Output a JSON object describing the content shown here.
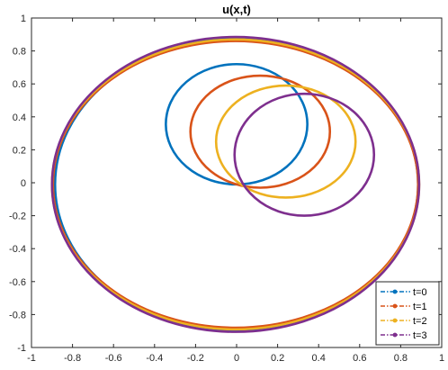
{
  "chart_data": {
    "type": "line",
    "title": "u(x,t)",
    "xlabel": "",
    "ylabel": "",
    "xlim": [
      -1,
      1
    ],
    "ylim": [
      -1,
      1
    ],
    "xticks": [
      "-1",
      "-0.8",
      "-0.6",
      "-0.4",
      "-0.2",
      "0",
      "0.2",
      "0.4",
      "0.6",
      "0.8",
      "1"
    ],
    "yticks": [
      "1",
      "0.8",
      "0.6",
      "0.4",
      "0.2",
      "0",
      "-0.2",
      "-0.4",
      "-0.6",
      "-0.8",
      "-1"
    ],
    "grid": false,
    "legend_position": "bottom-right",
    "series": [
      {
        "name": "t=0",
        "color": "#0072BD",
        "curves": [
          {
            "cx": 0.0,
            "cy": -0.01,
            "rx": 0.885,
            "ry": 0.885
          },
          {
            "cx": 0.0,
            "cy": 0.355,
            "rx": 0.345,
            "ry": 0.365
          }
        ]
      },
      {
        "name": "t=1",
        "color": "#D95319",
        "curves": [
          {
            "cx": -0.005,
            "cy": -0.01,
            "rx": 0.89,
            "ry": 0.87
          },
          {
            "cx": 0.115,
            "cy": 0.31,
            "rx": 0.34,
            "ry": 0.34
          }
        ]
      },
      {
        "name": "t=2",
        "color": "#EDB120",
        "curves": [
          {
            "cx": -0.005,
            "cy": -0.01,
            "rx": 0.895,
            "ry": 0.88
          },
          {
            "cx": 0.24,
            "cy": 0.25,
            "rx": 0.34,
            "ry": 0.34
          }
        ]
      },
      {
        "name": "t=3",
        "color": "#7E2F8E",
        "curves": [
          {
            "cx": -0.005,
            "cy": -0.01,
            "rx": 0.895,
            "ry": 0.895
          },
          {
            "cx": 0.33,
            "cy": 0.17,
            "rx": 0.34,
            "ry": 0.37
          }
        ]
      }
    ]
  }
}
